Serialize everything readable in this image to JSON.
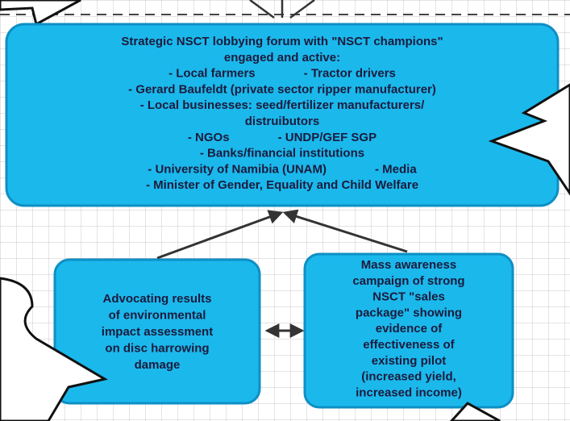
{
  "nodes": [
    {
      "lines": [
        [
          "Strategic NSCT lobbying forum with \"NSCT champions\""
        ],
        [
          "engaged and active:"
        ],
        [
          "- Local farmers",
          "- Tractor drivers"
        ],
        [
          "- Gerard Baufeldt (private sector ripper manufacturer)"
        ],
        [
          "- Local businesses: seed/fertilizer manufacturers/"
        ],
        [
          "distruibutors"
        ],
        [
          "- NGOs",
          "- UNDP/GEF SGP"
        ],
        [
          "- Banks/financial institutions"
        ],
        [
          "- University of Namibia (UNAM)",
          "- Media"
        ],
        [
          "- Minister of Gender, Equality and Child Welfare"
        ]
      ]
    },
    {
      "lines": [
        [
          "Advocating results"
        ],
        [
          "of environmental"
        ],
        [
          "impact assessment"
        ],
        [
          "on disc harrowing"
        ],
        [
          "damage"
        ]
      ]
    },
    {
      "lines": [
        [
          "Mass awareness"
        ],
        [
          "campaign of strong"
        ],
        [
          "NSCT \"sales"
        ],
        [
          "package\" showing"
        ],
        [
          "evidence of"
        ],
        [
          "effectiveness of"
        ],
        [
          "existing pilot"
        ],
        [
          "(increased yield,"
        ],
        [
          "increased income)"
        ]
      ]
    }
  ]
}
